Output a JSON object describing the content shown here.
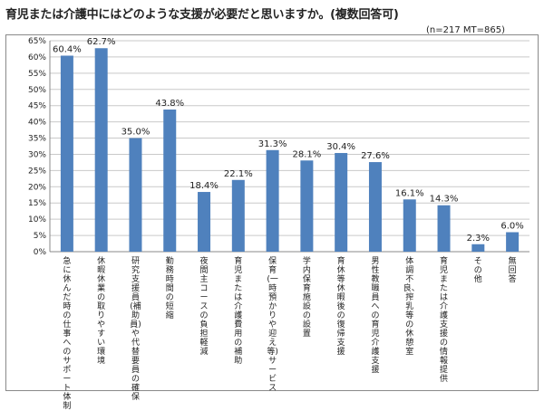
{
  "title": "育児または介護中にはどのような支援が必要だと思いますか。(複数回答可)",
  "note": "(n=217  MT=865)",
  "bar_color": "#4f81bd",
  "chart_data": {
    "type": "bar",
    "categories": [
      "急に休んだ時の仕事へのサポート体制",
      "休暇休業の取りやすい環境",
      "研究支援員(補助員)や代替要員の確保",
      "勤務時間の短縮",
      "夜間主コースの負担軽減",
      "育児または介護費用の補助",
      "保育(一時預かりや迎え等)サービス",
      "学内保育施設の設置",
      "育休等休暇後の復帰支援",
      "男性教職員への育児介護支援",
      "体調不良、搾乳等の休憩室",
      "育児または介護支援の情報提供",
      "その他",
      "無回答"
    ],
    "values": [
      60.4,
      62.7,
      35.0,
      43.8,
      18.4,
      22.1,
      31.3,
      28.1,
      30.4,
      27.6,
      16.1,
      14.3,
      2.3,
      6.0
    ],
    "value_labels": [
      "60.4%",
      "62.7%",
      "35.0%",
      "43.8%",
      "18.4%",
      "22.1%",
      "31.3%",
      "28.1%",
      "30.4%",
      "27.6%",
      "16.1%",
      "14.3%",
      "2.3%",
      "6.0%"
    ],
    "ylim": [
      0,
      65
    ],
    "yticks": [
      0,
      5,
      10,
      15,
      20,
      25,
      30,
      35,
      40,
      45,
      50,
      55,
      60,
      65
    ],
    "ytick_labels": [
      "0%",
      "5%",
      "10%",
      "15%",
      "20%",
      "25%",
      "30%",
      "35%",
      "40%",
      "45%",
      "50%",
      "55%",
      "60%",
      "65%"
    ],
    "grid": true,
    "xlabel": "",
    "ylabel": ""
  }
}
